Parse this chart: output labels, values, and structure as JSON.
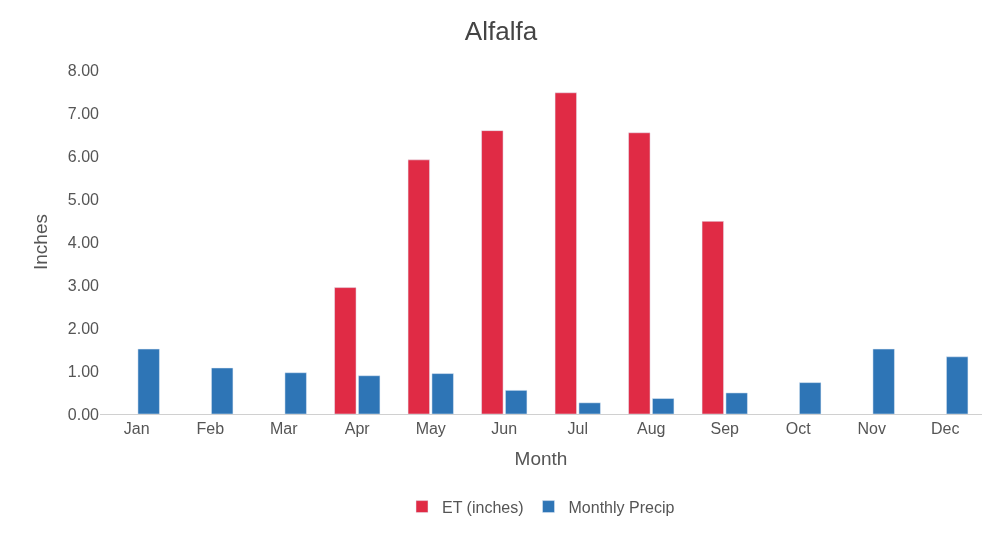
{
  "chart_data": {
    "type": "bar",
    "title": "Alfalfa",
    "xlabel": "Month",
    "ylabel": "Inches",
    "categories": [
      "Jan",
      "Feb",
      "Mar",
      "Apr",
      "May",
      "Jun",
      "Jul",
      "Aug",
      "Sep",
      "Oct",
      "Nov",
      "Dec"
    ],
    "series": [
      {
        "name": "ET (inches)",
        "color": "#e02b45",
        "values": [
          null,
          null,
          null,
          2.94,
          5.91,
          6.59,
          7.47,
          6.54,
          4.48,
          null,
          null,
          null
        ]
      },
      {
        "name": "Monthly Precip",
        "color": "#2e75b6",
        "values": [
          1.51,
          1.07,
          0.96,
          0.89,
          0.94,
          0.55,
          0.26,
          0.36,
          0.49,
          0.73,
          1.51,
          1.33
        ]
      }
    ],
    "ylim": [
      0,
      8
    ],
    "yticks": [
      {
        "value": 0,
        "label": "0.00"
      },
      {
        "value": 1,
        "label": "1.00"
      },
      {
        "value": 2,
        "label": "2.00"
      },
      {
        "value": 3,
        "label": "3.00"
      },
      {
        "value": 4,
        "label": "4.00"
      },
      {
        "value": 5,
        "label": "5.00"
      },
      {
        "value": 6,
        "label": "6.00"
      },
      {
        "value": 7,
        "label": "7.00"
      },
      {
        "value": 8,
        "label": "8.00"
      }
    ],
    "legend": "bottom"
  }
}
